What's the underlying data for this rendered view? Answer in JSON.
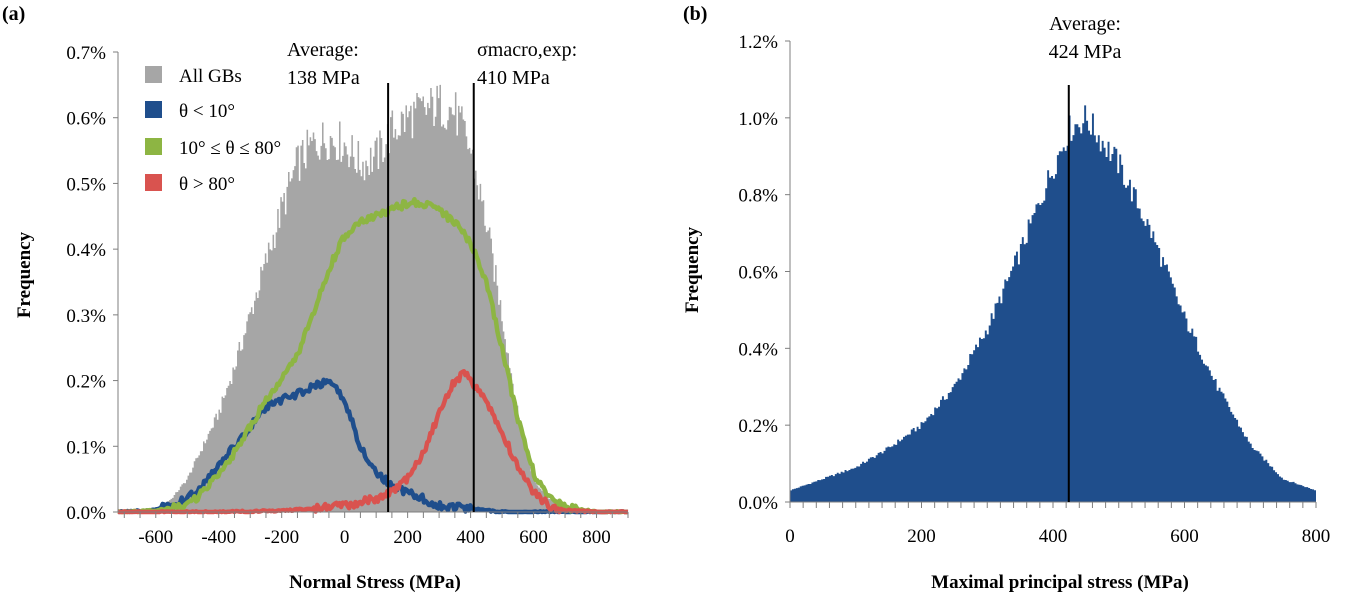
{
  "chart_data": [
    {
      "panel_label": "(a)",
      "type": "area",
      "xlabel": "Normal Stress (MPa)",
      "ylabel": "Frequency",
      "xlim": [
        -720,
        900
      ],
      "ylim": [
        0,
        0.7
      ],
      "x_ticks": [
        -600,
        -400,
        -200,
        0,
        200,
        400,
        600,
        800
      ],
      "y_ticks": [
        0.0,
        0.1,
        0.2,
        0.3,
        0.4,
        0.5,
        0.6,
        0.7
      ],
      "y_tick_labels": [
        "0.0%",
        "0.1%",
        "0.2%",
        "0.3%",
        "0.4%",
        "0.5%",
        "0.6%",
        "0.7%"
      ],
      "legend": {
        "placement": "top-left"
      },
      "series": [
        {
          "name": "All GBs",
          "color": "#a6a6a6",
          "style": "histogram",
          "x": [
            -700,
            -600,
            -550,
            -500,
            -450,
            -400,
            -350,
            -300,
            -250,
            -200,
            -150,
            -100,
            -50,
            0,
            50,
            100,
            150,
            200,
            250,
            300,
            350,
            400,
            450,
            500,
            550,
            600,
            650,
            700,
            750,
            800,
            900
          ],
          "values": [
            0.0,
            0.005,
            0.02,
            0.05,
            0.1,
            0.15,
            0.22,
            0.3,
            0.38,
            0.46,
            0.53,
            0.56,
            0.57,
            0.56,
            0.53,
            0.54,
            0.58,
            0.6,
            0.61,
            0.62,
            0.61,
            0.55,
            0.44,
            0.3,
            0.15,
            0.05,
            0.02,
            0.01,
            0.005,
            0.0,
            0.0
          ]
        },
        {
          "name": "θ < 10°",
          "color": "#1f4e8c",
          "style": "line",
          "x": [
            -700,
            -600,
            -500,
            -450,
            -400,
            -350,
            -300,
            -250,
            -200,
            -150,
            -100,
            -50,
            0,
            50,
            100,
            150,
            200,
            250,
            300,
            400,
            500,
            600,
            700,
            800,
            900
          ],
          "values": [
            0.0,
            0.003,
            0.02,
            0.04,
            0.07,
            0.1,
            0.13,
            0.16,
            0.17,
            0.18,
            0.19,
            0.2,
            0.17,
            0.1,
            0.06,
            0.04,
            0.03,
            0.02,
            0.01,
            0.005,
            0.0,
            0.0,
            0.0,
            0.0,
            0.0
          ]
        },
        {
          "name": "10° ≤ θ ≤ 80°",
          "color": "#8db543",
          "style": "line",
          "x": [
            -700,
            -600,
            -500,
            -450,
            -400,
            -350,
            -300,
            -250,
            -200,
            -150,
            -100,
            -50,
            0,
            50,
            100,
            150,
            200,
            250,
            300,
            350,
            400,
            450,
            500,
            550,
            600,
            650,
            700,
            800,
            900
          ],
          "values": [
            0.0,
            0.002,
            0.01,
            0.03,
            0.06,
            0.09,
            0.13,
            0.17,
            0.2,
            0.24,
            0.3,
            0.37,
            0.42,
            0.44,
            0.45,
            0.46,
            0.47,
            0.47,
            0.46,
            0.44,
            0.41,
            0.35,
            0.25,
            0.14,
            0.06,
            0.02,
            0.008,
            0.0,
            0.0
          ]
        },
        {
          "name": "θ > 80°",
          "color": "#d9534f",
          "style": "line",
          "x": [
            -700,
            -400,
            -200,
            -100,
            0,
            100,
            150,
            200,
            250,
            300,
            350,
            380,
            400,
            450,
            500,
            550,
            600,
            650,
            700,
            800,
            900
          ],
          "values": [
            0.0,
            0.0,
            0.002,
            0.005,
            0.01,
            0.02,
            0.03,
            0.05,
            0.09,
            0.15,
            0.2,
            0.21,
            0.2,
            0.17,
            0.12,
            0.07,
            0.03,
            0.01,
            0.003,
            0.0,
            0.0
          ]
        }
      ],
      "annotations": [
        {
          "label": "Average:",
          "value_text": "138 MPa",
          "x": 138
        },
        {
          "label": "σmacro,exp:",
          "value_text": "410 MPa",
          "x": 410
        }
      ]
    },
    {
      "panel_label": "(b)",
      "type": "area",
      "xlabel": "Maximal principal stress (MPa)",
      "ylabel": "Frequency",
      "xlim": [
        0,
        800
      ],
      "ylim": [
        0,
        1.2
      ],
      "x_ticks": [
        0,
        200,
        400,
        600,
        800
      ],
      "y_ticks": [
        0.0,
        0.2,
        0.4,
        0.6,
        0.8,
        1.0,
        1.2
      ],
      "y_tick_labels": [
        "0.0%",
        "0.2%",
        "0.4%",
        "0.6%",
        "0.8%",
        "1.0%",
        "1.2%"
      ],
      "series": [
        {
          "name": "",
          "color": "#1f4e8c",
          "style": "histogram",
          "x": [
            0,
            50,
            100,
            150,
            200,
            250,
            300,
            350,
            400,
            425,
            450,
            500,
            550,
            600,
            650,
            700,
            750,
            800
          ],
          "values": [
            0.03,
            0.06,
            0.09,
            0.14,
            0.2,
            0.3,
            0.45,
            0.65,
            0.87,
            0.97,
            1.0,
            0.88,
            0.7,
            0.48,
            0.3,
            0.15,
            0.06,
            0.03
          ]
        }
      ],
      "annotations": [
        {
          "label": "Average:",
          "value_text": "424 MPa",
          "x": 424
        }
      ]
    }
  ]
}
